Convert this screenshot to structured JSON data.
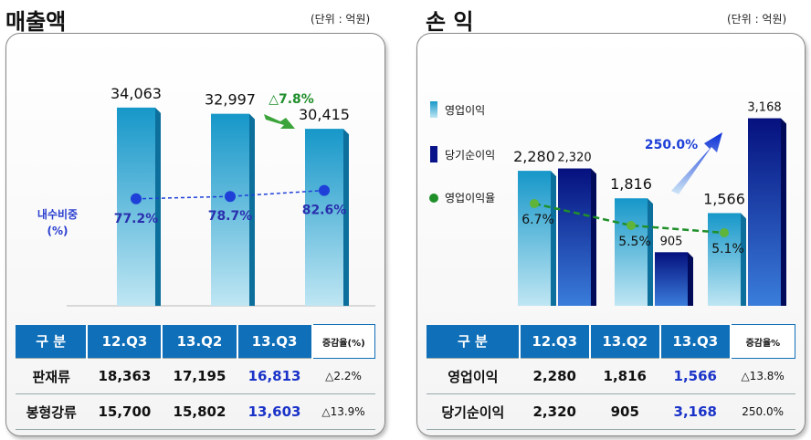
{
  "left": {
    "title": "매출액",
    "unit": "(단위 : 억원)",
    "ratio_label": "내수비중\n(%)",
    "growth_label": "△7.8%",
    "table": {
      "header": [
        "구  분",
        "12.Q3",
        "13.Q2",
        "13.Q3",
        "증감율(%)"
      ],
      "rows": [
        [
          "판재류",
          "18,363",
          "17,195",
          "16,813",
          "△2.2%"
        ],
        [
          "봉형강류",
          "15,700",
          "15,802",
          "13,603",
          "△13.9%"
        ]
      ]
    }
  },
  "right": {
    "title": "손  익",
    "unit": "(단위 : 억원)",
    "growth_label": "250.0%",
    "table": {
      "header": [
        "구  분",
        "12.Q3",
        "13.Q2",
        "13.Q3",
        "증감율%"
      ],
      "rows": [
        [
          "영업이익",
          "2,280",
          "1,816",
          "1,566",
          "△13.8%"
        ],
        [
          "당기순이익",
          "2,320",
          "905",
          "3,168",
          "250.0%"
        ]
      ]
    }
  },
  "chart_data": [
    {
      "type": "bar",
      "categories": [
        "12.Q3",
        "13.Q2",
        "13.Q3"
      ],
      "series": [
        {
          "values": [
            34063,
            32997,
            30415
          ],
          "labels": [
            "34,063",
            "32,997",
            "30,415"
          ]
        }
      ],
      "line_series": [
        {
          "name": "내수비중",
          "values": [
            77.2,
            78.7,
            82.6
          ],
          "labels": [
            "77.2%",
            "78.7%",
            "82.6%"
          ]
        }
      ],
      "title": "매출액",
      "ylim": [
        0,
        40000
      ],
      "colors": {
        "bar": "#1aa3cf",
        "line": "#1e3fd8"
      }
    },
    {
      "type": "bar",
      "categories": [
        "12.Q3",
        "13.Q2",
        "13.Q3"
      ],
      "series": [
        {
          "name": "영업이익",
          "values": [
            2280,
            1816,
            1566
          ],
          "labels": [
            "2,280",
            "1,816",
            "1,566"
          ]
        },
        {
          "name": "당기순이익",
          "values": [
            2320,
            905,
            3168
          ],
          "labels": [
            "2,320",
            "905",
            "3,168"
          ]
        }
      ],
      "line_series": [
        {
          "name": "영업이익율",
          "values": [
            6.7,
            5.5,
            5.1
          ],
          "labels": [
            "6.7%",
            "5.5%",
            "5.1%"
          ]
        }
      ],
      "title": "손  익",
      "ylim": [
        0,
        3500
      ],
      "colors": {
        "bar1": "#1aa3cf",
        "bar2": "#0a148a",
        "line": "#1f8f2a"
      }
    }
  ]
}
